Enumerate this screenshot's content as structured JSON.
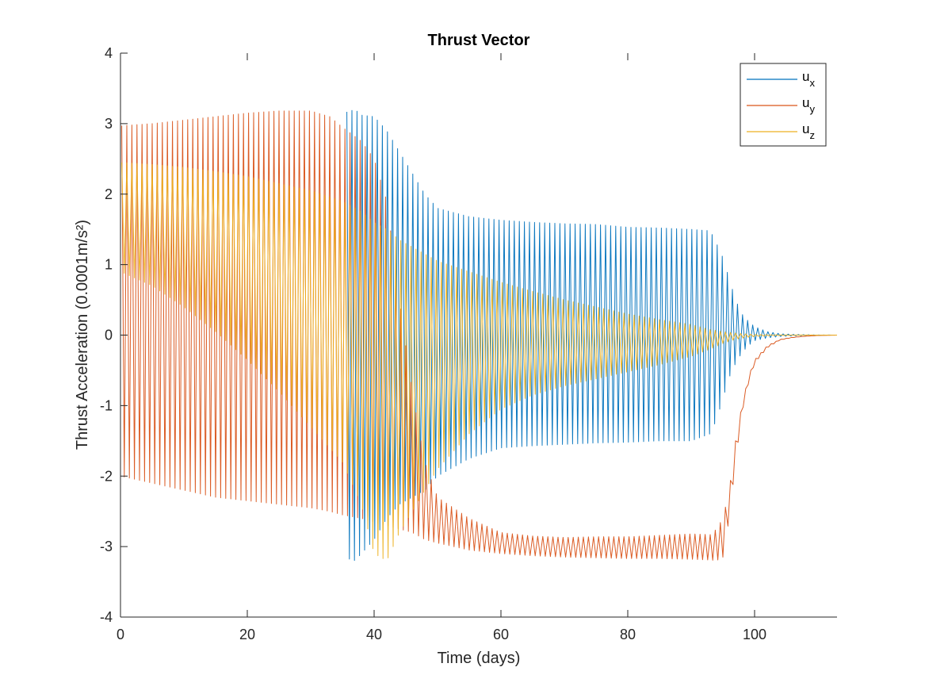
{
  "chart_data": {
    "type": "line",
    "title": "Thrust Vector",
    "xlabel": "Time (days)",
    "ylabel": "Thrust Acceleration (0.0001m/s²)",
    "xlim": [
      0,
      113
    ],
    "ylim": [
      -4,
      4
    ],
    "x_ticks": [
      0,
      20,
      40,
      60,
      80,
      100
    ],
    "x_tick_labels": [
      "0",
      "20",
      "40",
      "60",
      "80",
      "100"
    ],
    "y_ticks": [
      -4,
      -3,
      -2,
      -1,
      0,
      1,
      2,
      3,
      4
    ],
    "y_tick_labels": [
      "-4",
      "-3",
      "-2",
      "-1",
      "0",
      "1",
      "2",
      "3",
      "4"
    ],
    "grid": false,
    "legend_position": "top-right",
    "oscillation_period_days": 0.8,
    "series": [
      {
        "name": "u_x",
        "legend_main": "u",
        "legend_sub": "x",
        "color": "#0072BD",
        "envelope_x": [
          0,
          5,
          10,
          15,
          20,
          25,
          30,
          35,
          37,
          38,
          40,
          42,
          44,
          46,
          48,
          50,
          55,
          60,
          65,
          70,
          75,
          80,
          85,
          90,
          93,
          94,
          95,
          96,
          97,
          98,
          99,
          100,
          102,
          104,
          106,
          108,
          110,
          113
        ],
        "upper": [
          2.97,
          3.0,
          3.02,
          3.05,
          3.07,
          3.1,
          3.13,
          3.15,
          3.2,
          3.12,
          3.1,
          2.9,
          2.6,
          2.3,
          2.0,
          1.8,
          1.68,
          1.63,
          1.6,
          1.58,
          1.57,
          1.53,
          1.52,
          1.5,
          1.48,
          1.3,
          1.1,
          0.8,
          0.5,
          0.3,
          0.2,
          0.12,
          0.05,
          0.02,
          0.01,
          0.005,
          0.002,
          0
        ],
        "lower": [
          -2.97,
          -3.0,
          -3.02,
          -3.05,
          -3.07,
          -3.1,
          -3.13,
          -3.15,
          -3.2,
          -3.1,
          -2.9,
          -2.6,
          -2.4,
          -2.3,
          -2.2,
          -2.0,
          -1.75,
          -1.6,
          -1.57,
          -1.55,
          -1.53,
          -1.52,
          -1.5,
          -1.5,
          -1.4,
          -1.2,
          -0.9,
          -0.6,
          -0.4,
          -0.25,
          -0.15,
          -0.08,
          -0.04,
          -0.02,
          -0.01,
          -0.005,
          -0.002,
          0
        ],
        "start_x": 35.5
      },
      {
        "name": "u_y",
        "legend_main": "u",
        "legend_sub": "y",
        "color": "#D95319",
        "envelope_x": [
          0,
          5,
          10,
          15,
          20,
          25,
          30,
          33,
          35,
          38,
          40,
          42,
          44,
          46,
          48,
          50,
          55,
          60,
          65,
          70,
          75,
          80,
          85,
          90,
          93,
          94,
          95,
          96,
          97,
          98,
          99,
          100,
          102,
          104,
          106,
          108,
          110,
          113
        ],
        "upper": [
          2.97,
          3.0,
          3.05,
          3.1,
          3.15,
          3.18,
          3.18,
          3.1,
          2.95,
          2.75,
          2.5,
          1.9,
          0.5,
          -0.8,
          -1.8,
          -2.3,
          -2.6,
          -2.8,
          -2.85,
          -2.87,
          -2.86,
          -2.86,
          -2.84,
          -2.82,
          -2.83,
          -2.75,
          -2.6,
          -2.2,
          -1.5,
          -1.0,
          -0.6,
          -0.35,
          -0.15,
          -0.06,
          -0.03,
          -0.015,
          -0.005,
          0
        ],
        "lower": [
          -2.0,
          -2.1,
          -2.2,
          -2.3,
          -2.35,
          -2.4,
          -2.45,
          -2.5,
          -2.55,
          -2.6,
          -2.65,
          -2.7,
          -2.75,
          -2.8,
          -2.9,
          -2.95,
          -3.05,
          -3.1,
          -3.13,
          -3.15,
          -3.16,
          -3.17,
          -3.17,
          -3.18,
          -3.19,
          -3.2,
          -3.15,
          -2.6,
          -1.8,
          -1.1,
          -0.7,
          -0.4,
          -0.18,
          -0.07,
          -0.035,
          -0.017,
          -0.006,
          0
        ],
        "start_x": 0
      },
      {
        "name": "u_z",
        "legend_main": "u",
        "legend_sub": "z",
        "color": "#EDB120",
        "envelope_x": [
          0,
          5,
          10,
          15,
          20,
          25,
          30,
          35,
          38,
          40,
          42,
          44,
          46,
          48,
          50,
          55,
          60,
          65,
          70,
          75,
          80,
          85,
          90,
          93,
          95,
          97,
          99,
          100,
          102,
          104,
          106,
          108,
          110,
          113
        ],
        "upper": [
          2.45,
          2.42,
          2.38,
          2.32,
          2.25,
          2.15,
          2.05,
          1.9,
          1.75,
          1.6,
          1.5,
          1.35,
          1.25,
          1.15,
          1.05,
          0.9,
          0.75,
          0.62,
          0.5,
          0.4,
          0.3,
          0.22,
          0.15,
          0.08,
          0.05,
          0.03,
          0.015,
          0.01,
          0.006,
          0.003,
          0.002,
          0.001,
          0.0005,
          0
        ],
        "lower": [
          0.9,
          0.7,
          0.4,
          0.05,
          -0.35,
          -0.8,
          -1.3,
          -1.8,
          -2.4,
          -3.1,
          -3.2,
          -2.8,
          -2.5,
          -2.2,
          -1.9,
          -1.4,
          -1.05,
          -0.85,
          -0.72,
          -0.62,
          -0.52,
          -0.42,
          -0.3,
          -0.2,
          -0.12,
          -0.06,
          -0.03,
          -0.02,
          -0.01,
          -0.006,
          -0.003,
          -0.002,
          -0.001,
          0
        ],
        "start_x": 0
      }
    ]
  }
}
